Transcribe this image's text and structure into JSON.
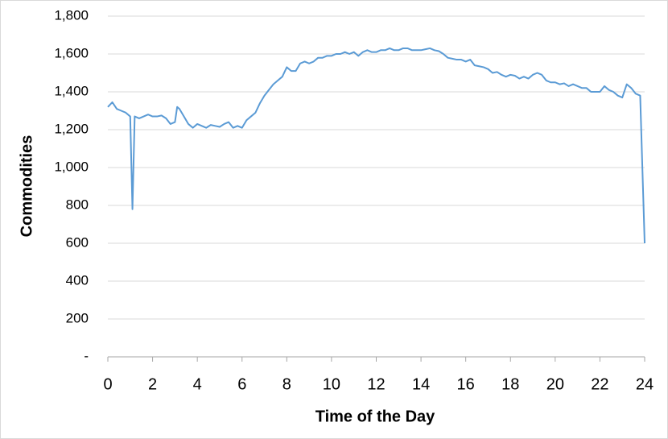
{
  "chart_data": {
    "type": "line",
    "xlabel": "Time of the Day",
    "ylabel": "Commodities",
    "x": [
      0,
      0.2,
      0.4,
      0.6,
      0.8,
      1.0,
      1.1,
      1.2,
      1.4,
      1.6,
      1.8,
      2.0,
      2.2,
      2.4,
      2.6,
      2.8,
      3.0,
      3.1,
      3.2,
      3.4,
      3.6,
      3.8,
      4.0,
      4.2,
      4.4,
      4.6,
      4.8,
      5.0,
      5.2,
      5.4,
      5.6,
      5.8,
      6.0,
      6.2,
      6.4,
      6.6,
      6.8,
      7.0,
      7.2,
      7.4,
      7.6,
      7.8,
      8.0,
      8.2,
      8.4,
      8.6,
      8.8,
      9.0,
      9.2,
      9.4,
      9.6,
      9.8,
      10.0,
      10.2,
      10.4,
      10.6,
      10.8,
      11.0,
      11.2,
      11.4,
      11.6,
      11.8,
      12.0,
      12.2,
      12.4,
      12.6,
      12.8,
      13.0,
      13.2,
      13.4,
      13.6,
      13.8,
      14.0,
      14.2,
      14.4,
      14.6,
      14.8,
      15.0,
      15.2,
      15.4,
      15.6,
      15.8,
      16.0,
      16.2,
      16.4,
      16.6,
      16.8,
      17.0,
      17.2,
      17.4,
      17.6,
      17.8,
      18.0,
      18.2,
      18.4,
      18.6,
      18.8,
      19.0,
      19.2,
      19.4,
      19.6,
      19.8,
      20.0,
      20.2,
      20.4,
      20.6,
      20.8,
      21.0,
      21.2,
      21.4,
      21.6,
      21.8,
      22.0,
      22.2,
      22.4,
      22.6,
      22.8,
      23.0,
      23.2,
      23.4,
      23.6,
      23.8,
      24.0
    ],
    "series": [
      {
        "name": "Commodities",
        "color": "#5b9bd5",
        "values": [
          1320,
          1345,
          1310,
          1300,
          1290,
          1270,
          780,
          1270,
          1260,
          1270,
          1280,
          1270,
          1270,
          1275,
          1260,
          1230,
          1240,
          1320,
          1310,
          1270,
          1230,
          1210,
          1230,
          1220,
          1210,
          1225,
          1220,
          1215,
          1230,
          1240,
          1210,
          1220,
          1210,
          1250,
          1270,
          1290,
          1340,
          1380,
          1410,
          1440,
          1460,
          1480,
          1530,
          1510,
          1510,
          1550,
          1560,
          1550,
          1560,
          1580,
          1580,
          1590,
          1590,
          1600,
          1600,
          1610,
          1600,
          1610,
          1590,
          1610,
          1620,
          1610,
          1610,
          1620,
          1620,
          1630,
          1620,
          1620,
          1630,
          1630,
          1620,
          1620,
          1620,
          1625,
          1630,
          1620,
          1615,
          1600,
          1580,
          1575,
          1570,
          1570,
          1560,
          1570,
          1540,
          1535,
          1530,
          1520,
          1500,
          1505,
          1490,
          1480,
          1490,
          1485,
          1470,
          1480,
          1470,
          1490,
          1500,
          1490,
          1460,
          1450,
          1450,
          1440,
          1445,
          1430,
          1440,
          1430,
          1420,
          1420,
          1400,
          1400,
          1400,
          1430,
          1410,
          1400,
          1380,
          1370,
          1440,
          1420,
          1390,
          1380,
          600
        ]
      }
    ],
    "xlim": [
      0,
      24
    ],
    "xticks": [
      0,
      2,
      4,
      6,
      8,
      10,
      12,
      14,
      16,
      18,
      20,
      22,
      24
    ],
    "ylim": [
      0,
      1800
    ],
    "yticks": [
      {
        "value": 0,
        "label": "-"
      },
      200,
      400,
      600,
      800,
      {
        "value": 1000,
        "label": "1,000"
      },
      {
        "value": 1200,
        "label": "1,200"
      },
      {
        "value": 1400,
        "label": "1,400"
      },
      {
        "value": 1600,
        "label": "1,600"
      },
      {
        "value": 1800,
        "label": "1,800"
      }
    ],
    "grid": true
  }
}
